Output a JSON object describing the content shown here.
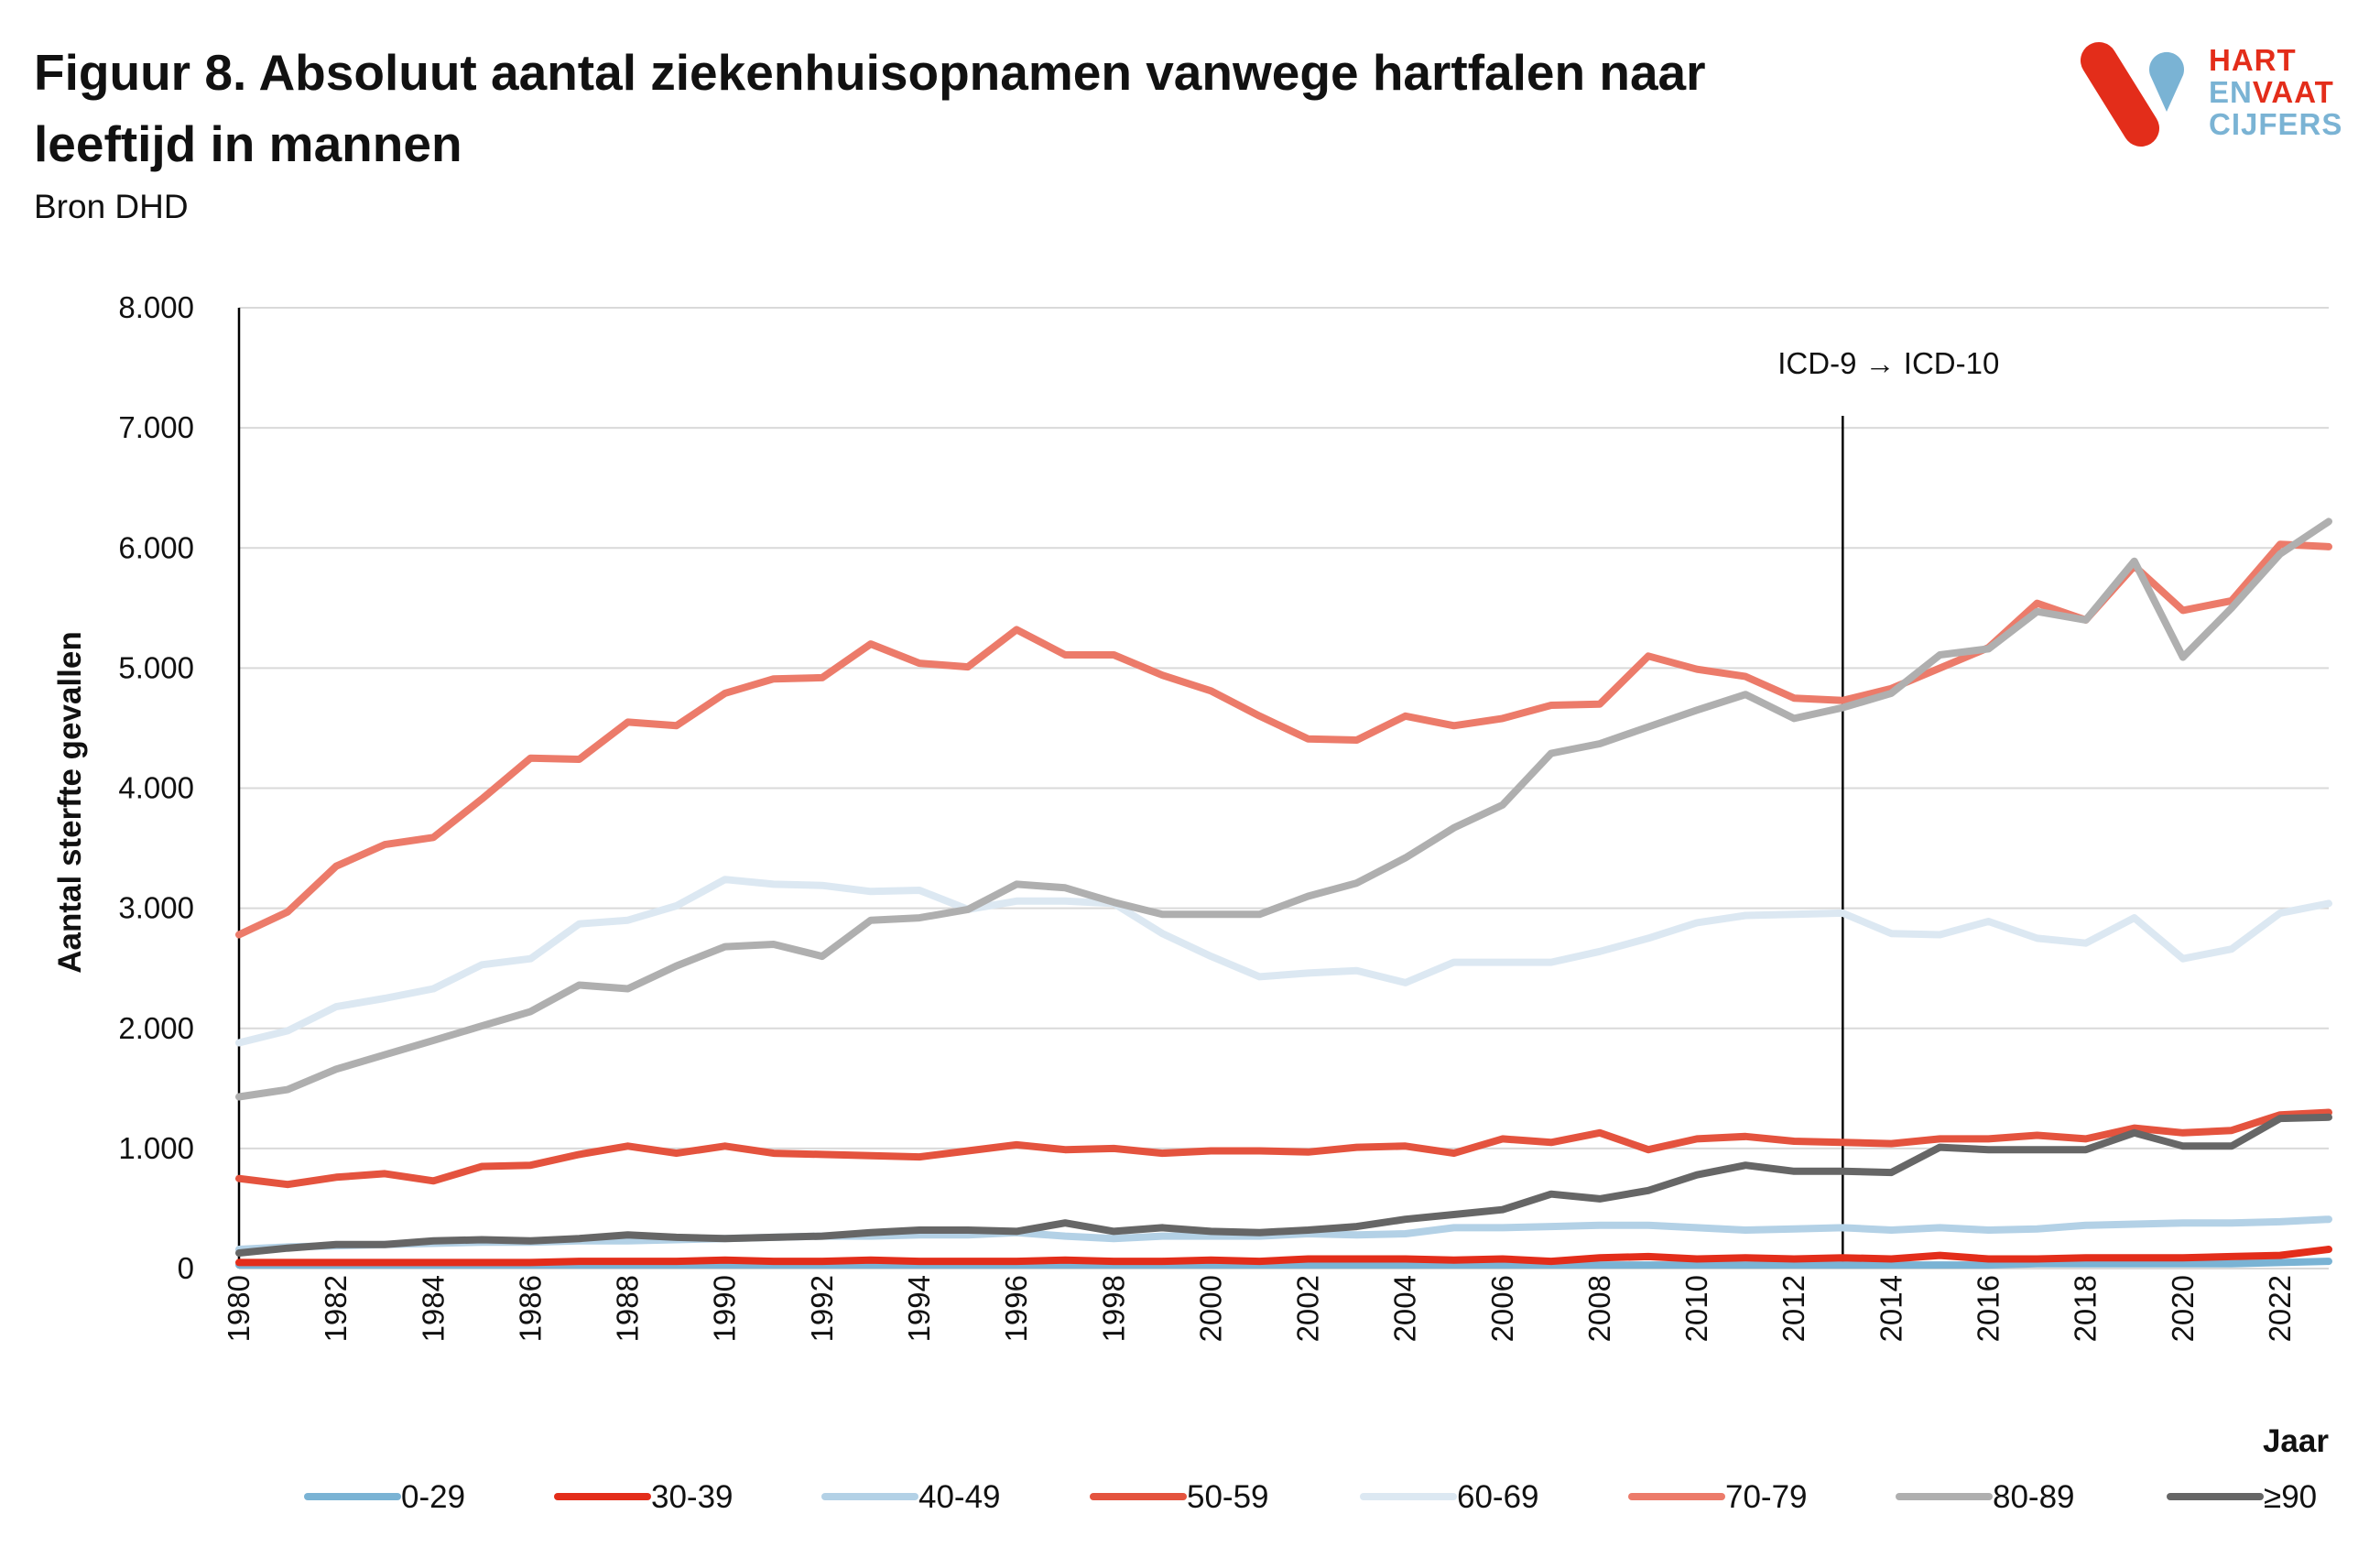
{
  "title": [
    "Figuur 8. Absoluut aantal ziekenhuisopnamen vanwege hartfalen naar",
    "leeftijd in mannen"
  ],
  "source": "Bron DHD",
  "logo": {
    "line1": "HART",
    "line2a": "EN",
    "line2b": "VAAT",
    "line3": "CIJFERS",
    "colors": {
      "red": "#e32d1a",
      "blue": "#7ab3d4"
    }
  },
  "chart_data": {
    "type": "line",
    "title": "Figuur 8. Absoluut aantal ziekenhuisopnamen vanwege hartfalen naar leeftijd in mannen",
    "ylabel": "Aantal sterfte gevallen",
    "xlabel": "Jaar",
    "ylim": [
      0,
      8000
    ],
    "grid": true,
    "legend_position": "bottom",
    "y_ticks": [
      {
        "value": 0,
        "label": "0"
      },
      {
        "value": 1000,
        "label": "1.000"
      },
      {
        "value": 2000,
        "label": "2.000"
      },
      {
        "value": 3000,
        "label": "3.000"
      },
      {
        "value": 4000,
        "label": "4.000"
      },
      {
        "value": 5000,
        "label": "5.000"
      },
      {
        "value": 6000,
        "label": "6.000"
      },
      {
        "value": 7000,
        "label": "7.000"
      },
      {
        "value": 8000,
        "label": "8.000"
      }
    ],
    "x_ticks": [
      1980,
      1982,
      1984,
      1986,
      1988,
      1990,
      1992,
      1994,
      1996,
      1998,
      2000,
      2002,
      2004,
      2006,
      2008,
      2010,
      2012,
      2014,
      2016,
      2018,
      2020,
      2022
    ],
    "annotation": {
      "text": "ICD-9 → ICD-10",
      "x": 2013
    },
    "x": [
      1980,
      1981,
      1982,
      1983,
      1984,
      1985,
      1986,
      1987,
      1988,
      1989,
      1990,
      1991,
      1992,
      1993,
      1994,
      1995,
      1996,
      1997,
      1998,
      1999,
      2000,
      2001,
      2002,
      2003,
      2004,
      2005,
      2006,
      2007,
      2008,
      2009,
      2010,
      2011,
      2012,
      2013,
      2014,
      2015,
      2016,
      2017,
      2018,
      2019,
      2020,
      2021,
      2022,
      2023
    ],
    "series": [
      {
        "name": "0-29",
        "color": "#7ab3d4",
        "values": [
          30,
          30,
          30,
          30,
          30,
          30,
          30,
          30,
          30,
          30,
          30,
          30,
          30,
          30,
          30,
          30,
          30,
          30,
          30,
          30,
          30,
          30,
          30,
          30,
          30,
          30,
          30,
          30,
          30,
          30,
          30,
          30,
          30,
          30,
          30,
          30,
          30,
          40,
          40,
          40,
          40,
          40,
          50,
          60
        ]
      },
      {
        "name": "30-39",
        "color": "#e32d1a",
        "values": [
          50,
          50,
          50,
          50,
          50,
          50,
          50,
          60,
          60,
          60,
          70,
          60,
          60,
          70,
          60,
          60,
          60,
          70,
          60,
          60,
          70,
          60,
          80,
          80,
          80,
          70,
          80,
          60,
          90,
          100,
          80,
          90,
          80,
          90,
          80,
          110,
          80,
          80,
          90,
          90,
          90,
          100,
          110,
          160
        ]
      },
      {
        "name": "40-49",
        "color": "#b3d1e6",
        "values": [
          160,
          180,
          190,
          200,
          210,
          220,
          220,
          230,
          230,
          240,
          250,
          260,
          270,
          270,
          280,
          280,
          300,
          270,
          250,
          270,
          270,
          270,
          290,
          280,
          290,
          340,
          340,
          350,
          360,
          360,
          340,
          320,
          330,
          340,
          320,
          340,
          320,
          330,
          360,
          370,
          380,
          380,
          390,
          410
        ]
      },
      {
        "name": "50-59",
        "color": "#e4533e",
        "values": [
          750,
          700,
          760,
          790,
          730,
          850,
          860,
          950,
          1020,
          960,
          1020,
          960,
          950,
          940,
          930,
          980,
          1030,
          990,
          1000,
          960,
          980,
          980,
          970,
          1010,
          1020,
          960,
          1080,
          1050,
          1130,
          990,
          1080,
          1100,
          1060,
          1050,
          1040,
          1080,
          1080,
          1110,
          1080,
          1170,
          1130,
          1150,
          1280,
          1300
        ]
      },
      {
        "name": "60-69",
        "color": "#dce8f2",
        "values": [
          1880,
          1980,
          2180,
          2250,
          2330,
          2530,
          2580,
          2870,
          2900,
          3020,
          3240,
          3200,
          3190,
          3140,
          3150,
          2990,
          3060,
          3060,
          3040,
          2790,
          2600,
          2430,
          2460,
          2480,
          2380,
          2550,
          2550,
          2550,
          2640,
          2750,
          2880,
          2940,
          2950,
          2960,
          2790,
          2780,
          2890,
          2750,
          2710,
          2920,
          2580,
          2660,
          2960,
          3040
        ]
      },
      {
        "name": "70-79",
        "color": "#ec7b6a",
        "values": [
          2780,
          2970,
          3350,
          3530,
          3590,
          3910,
          4250,
          4240,
          4550,
          4520,
          4790,
          4910,
          4920,
          5200,
          5040,
          5010,
          5320,
          5110,
          5110,
          4940,
          4810,
          4600,
          4410,
          4400,
          4600,
          4520,
          4580,
          4690,
          4700,
          5100,
          4990,
          4930,
          4750,
          4730,
          4830,
          5000,
          5170,
          5540,
          5400,
          5850,
          5480,
          5560,
          6030,
          6010
        ]
      },
      {
        "name": "80-89",
        "color": "#afafaf",
        "values": [
          1430,
          1490,
          1660,
          1780,
          1900,
          2020,
          2140,
          2360,
          2330,
          2520,
          2680,
          2700,
          2600,
          2900,
          2920,
          2990,
          3200,
          3170,
          3050,
          2950,
          2950,
          2950,
          3100,
          3210,
          3420,
          3670,
          3860,
          4290,
          4370,
          4510,
          4650,
          4780,
          4580,
          4670,
          4790,
          5110,
          5160,
          5470,
          5400,
          5890,
          5090,
          5500,
          5950,
          6220
        ]
      },
      {
        "name": "≥90",
        "color": "#666666",
        "values": [
          130,
          170,
          200,
          200,
          230,
          240,
          230,
          250,
          280,
          260,
          250,
          260,
          270,
          300,
          320,
          320,
          310,
          380,
          310,
          340,
          310,
          300,
          320,
          350,
          410,
          450,
          490,
          620,
          580,
          650,
          780,
          860,
          810,
          810,
          800,
          1010,
          990,
          990,
          990,
          1130,
          1020,
          1020,
          1250,
          1260
        ]
      }
    ]
  }
}
